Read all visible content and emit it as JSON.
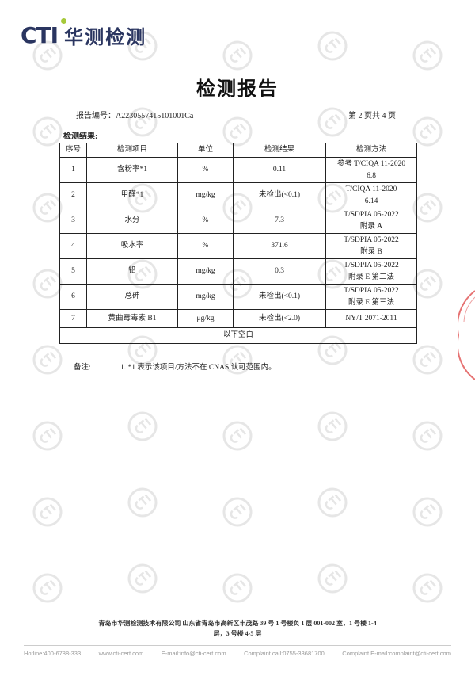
{
  "header": {
    "logo_text": "CTI",
    "logo_cn": "华测检测",
    "title": "检测报告",
    "report_no": "报告编号：A2230557415101001Ca",
    "page": "第 2 页共 4 页"
  },
  "section_label": "检测结果:",
  "table": {
    "columns": [
      "序号",
      "检测项目",
      "单位",
      "检测结果",
      "检测方法"
    ],
    "rows": [
      {
        "no": "1",
        "item": "含粉率*1",
        "unit": "%",
        "result": "0.11",
        "method1": "参考 T/CIQA 11-2020",
        "method2": "6.8"
      },
      {
        "no": "2",
        "item": "甲醛*1",
        "unit": "mg/kg",
        "result": "未检出(<0.1)",
        "method1": "T/CIQA 11-2020",
        "method2": "6.14"
      },
      {
        "no": "3",
        "item": "水分",
        "unit": "%",
        "result": "7.3",
        "method1": "T/SDPIA 05-2022",
        "method2": "附录 A"
      },
      {
        "no": "4",
        "item": "吸水率",
        "unit": "%",
        "result": "371.6",
        "method1": "T/SDPIA 05-2022",
        "method2": "附录 B"
      },
      {
        "no": "5",
        "item": "铅",
        "unit": "mg/kg",
        "result": "0.3",
        "method1": "T/SDPIA 05-2022",
        "method2": "附录 E 第二法"
      },
      {
        "no": "6",
        "item": "总砷",
        "unit": "mg/kg",
        "result": "未检出(<0.1)",
        "method1": "T/SDPIA 05-2022",
        "method2": "附录 E 第三法"
      },
      {
        "no": "7",
        "item": "黄曲霉毒素 B1",
        "unit": "μg/kg",
        "result": "未检出(<2.0)",
        "method1": "NY/T 2071-2011",
        "method2": ""
      }
    ],
    "blank": "以下空白"
  },
  "notes": {
    "label": "备注:",
    "text": "1. *1 表示该项目/方法不在 CNAS 认可范围内。"
  },
  "footer": {
    "address1": "青岛市华测检测技术有限公司 山东省青岛市高新区丰茂路 39 号 1 号楼负 1 层 001-002 室，1 号楼 1-4",
    "address2": "层，3 号楼 4-5 层",
    "hotline": "Hotline:400-6788-333",
    "web": "www.cti-cert.com",
    "email": "E-mail:info@cti-cert.com",
    "complaint_call": "Complaint call:0755-33681700",
    "complaint_email": "Complaint E-mail:complaint@cti-cert.com"
  },
  "watermark_text": "CTI",
  "colors": {
    "brand": "#2a3560",
    "accent": "#a6c93a",
    "seal": "#dd4444"
  }
}
